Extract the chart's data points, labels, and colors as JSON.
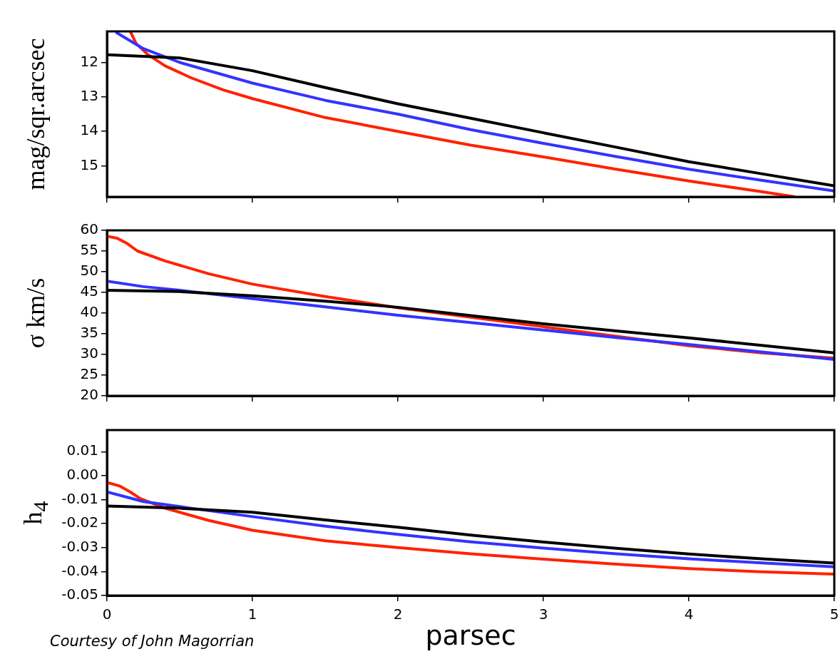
{
  "chart_data": [
    {
      "type": "line",
      "ylabel": "mag/sqr.arcsec",
      "xlim": [
        0,
        5
      ],
      "xticks": [
        0,
        1,
        2,
        3,
        4,
        5
      ],
      "ylim": [
        15.9,
        11.1
      ],
      "yticks": [
        12,
        13,
        14,
        15
      ],
      "tick_labels": "y",
      "grid": false,
      "legend": false,
      "series": [
        {
          "color": "#000000",
          "x": [
            0,
            0.5,
            1,
            1.5,
            2,
            2.5,
            3,
            3.5,
            4,
            4.5,
            5
          ],
          "values": [
            11.78,
            11.87,
            12.24,
            12.73,
            13.2,
            13.62,
            14.04,
            14.46,
            14.88,
            15.23,
            15.58
          ]
        },
        {
          "color": "#3333ff",
          "x": [
            0.06,
            0.25,
            0.5,
            1,
            1.5,
            2,
            2.5,
            3,
            3.5,
            4,
            4.5,
            5
          ],
          "values": [
            11.12,
            11.6,
            12.0,
            12.6,
            13.1,
            13.5,
            13.95,
            14.35,
            14.73,
            15.1,
            15.42,
            15.73
          ]
        },
        {
          "color": "#ff2200",
          "x": [
            0.16,
            0.2,
            0.28,
            0.4,
            0.58,
            0.8,
            1,
            1.5,
            2,
            2.5,
            3,
            3.5,
            4,
            4.5,
            4.73
          ],
          "values": [
            11.1,
            11.45,
            11.77,
            12.1,
            12.45,
            12.8,
            13.05,
            13.6,
            14.0,
            14.4,
            14.74,
            15.1,
            15.44,
            15.75,
            15.9
          ]
        }
      ]
    },
    {
      "type": "line",
      "ylabel": "σ km/s",
      "xlim": [
        0,
        5
      ],
      "xticks": [
        0,
        1,
        2,
        3,
        4,
        5
      ],
      "ylim": [
        20,
        60
      ],
      "yticks": [
        20,
        25,
        30,
        35,
        40,
        45,
        50,
        55,
        60
      ],
      "tick_labels": "y",
      "grid": false,
      "legend": false,
      "series": [
        {
          "color": "#000000",
          "x": [
            0,
            0.5,
            1,
            1.5,
            2,
            2.5,
            3,
            3.5,
            4,
            4.5,
            5
          ],
          "values": [
            45.5,
            45.2,
            44.2,
            42.9,
            41.4,
            39.4,
            37.4,
            35.7,
            34.0,
            32.2,
            30.4
          ]
        },
        {
          "color": "#3333ff",
          "x": [
            0,
            0.25,
            0.5,
            1,
            1.5,
            2,
            2.5,
            3,
            3.5,
            4,
            4.5,
            5
          ],
          "values": [
            47.7,
            46.4,
            45.5,
            43.5,
            41.5,
            39.5,
            37.7,
            35.9,
            34.1,
            32.4,
            30.6,
            28.8
          ]
        },
        {
          "color": "#ff2200",
          "x": [
            0,
            0.07,
            0.14,
            0.21,
            0.4,
            0.7,
            1,
            1.5,
            2,
            2.5,
            3,
            3.5,
            4,
            4.5,
            5
          ],
          "values": [
            58.6,
            58.1,
            56.8,
            55.0,
            52.6,
            49.5,
            47.0,
            44.0,
            41.3,
            39.0,
            36.7,
            34.4,
            32.1,
            30.4,
            29.1
          ]
        }
      ]
    },
    {
      "type": "line",
      "ylabel": "h$_{4}$",
      "xlabel": "parsec",
      "xlim": [
        0,
        5
      ],
      "xticks": [
        0,
        1,
        2,
        3,
        4,
        5
      ],
      "ylim": [
        -0.05,
        0.019
      ],
      "yticks": [
        -0.05,
        -0.04,
        -0.03,
        -0.02,
        -0.01,
        {
          "value": 0,
          "label": "0.00"
        },
        0.01
      ],
      "grid": false,
      "legend": false,
      "annotations": [
        "Courtesy of John Magorrian"
      ],
      "series": [
        {
          "color": "#000000",
          "x": [
            0,
            0.5,
            1,
            1.5,
            2,
            2.5,
            3,
            3.5,
            4,
            4.5,
            5
          ],
          "values": [
            -0.0127,
            -0.0136,
            -0.0153,
            -0.0185,
            -0.0215,
            -0.0248,
            -0.0277,
            -0.0303,
            -0.0327,
            -0.0347,
            -0.0365
          ]
        },
        {
          "color": "#3333ff",
          "x": [
            0,
            0.25,
            0.58,
            1,
            1.5,
            2,
            2.5,
            3,
            3.5,
            4,
            4.5,
            5
          ],
          "values": [
            -0.0068,
            -0.0108,
            -0.0136,
            -0.0171,
            -0.0211,
            -0.0245,
            -0.0276,
            -0.0302,
            -0.0326,
            -0.0347,
            -0.0364,
            -0.038
          ]
        },
        {
          "color": "#ff2200",
          "x": [
            0,
            0.09,
            0.16,
            0.23,
            0.4,
            0.7,
            1,
            1.5,
            2,
            2.5,
            3,
            3.5,
            4,
            4.5,
            5
          ],
          "values": [
            -0.0028,
            -0.0044,
            -0.0068,
            -0.0096,
            -0.0136,
            -0.0187,
            -0.0228,
            -0.0272,
            -0.03,
            -0.0326,
            -0.0348,
            -0.0369,
            -0.0388,
            -0.0401,
            -0.0411
          ]
        }
      ]
    }
  ]
}
